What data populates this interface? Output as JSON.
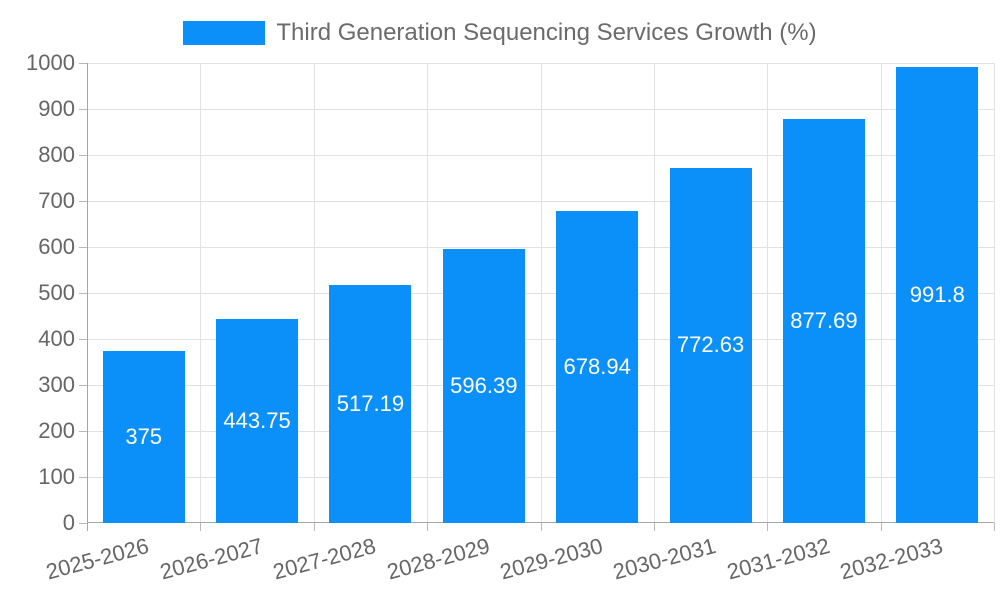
{
  "chart_data": {
    "type": "bar",
    "title": "Third Generation Sequencing Services Growth (%)",
    "legend": {
      "label": "Third Generation Sequencing Services Growth (%)",
      "position": "top"
    },
    "categories": [
      "2025-2026",
      "2026-2027",
      "2027-2028",
      "2028-2029",
      "2029-2030",
      "2030-2031",
      "2031-2032",
      "2032-2033"
    ],
    "values": [
      375,
      443.75,
      517.19,
      596.39,
      678.94,
      772.63,
      877.69,
      991.8
    ],
    "value_labels": [
      "375",
      "443.75",
      "517.19",
      "596.39",
      "678.94",
      "772.63",
      "877.69",
      "991.8"
    ],
    "xlabel": "",
    "ylabel": "",
    "ylim": [
      0,
      1000
    ],
    "ytick_step": 100,
    "yticks": [
      0,
      100,
      200,
      300,
      400,
      500,
      600,
      700,
      800,
      900,
      1000
    ],
    "grid": true,
    "x_label_rotation_deg": -15,
    "colors": {
      "bar": "#0a90f8",
      "grid": "#e2e2e2",
      "axis": "#a6a6a6",
      "tick": "#b8b8b8",
      "axis_text": "#666666",
      "value_text": "#ffffff",
      "legend_text": "#6b6b6b",
      "background": "#ffffff"
    }
  }
}
